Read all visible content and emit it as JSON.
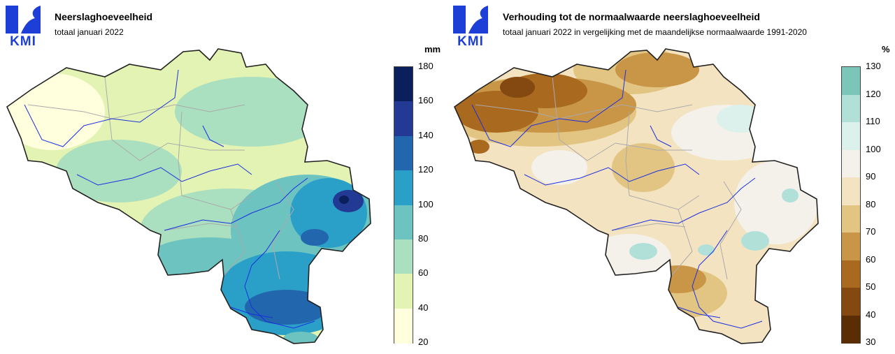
{
  "logo": {
    "text": "KMI",
    "color": "#1d3fd8"
  },
  "left_map": {
    "title": "Neerslaghoeveelheid",
    "subtitle": "totaal januari 2022",
    "unit": "mm",
    "ticks": [
      "180",
      "160",
      "140",
      "120",
      "100",
      "80",
      "60",
      "40",
      "20"
    ],
    "colors": [
      "#0a1f5c",
      "#223a93",
      "#2266ad",
      "#2aa0c8",
      "#6cc3c0",
      "#aadfbf",
      "#e3f3b3",
      "#ffffde"
    ]
  },
  "right_map": {
    "title": "Verhouding tot de normaalwaarde neerslaghoeveelheid",
    "subtitle": "totaal januari 2022 in vergelijking met de maandelijkse normaalwaarde 1991-2020",
    "unit": "%",
    "ticks": [
      "130",
      "120",
      "110",
      "100",
      "90",
      "80",
      "70",
      "60",
      "50",
      "40",
      "30"
    ],
    "colors": [
      "#7bc6b8",
      "#b1e0d8",
      "#dcf0ec",
      "#f3f1ea",
      "#f4e3c1",
      "#e2c583",
      "#c99547",
      "#a96a20",
      "#844811",
      "#5a2d05"
    ]
  }
}
